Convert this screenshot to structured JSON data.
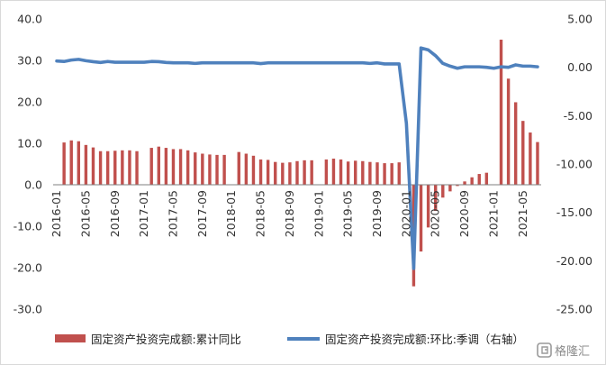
{
  "chart_data": {
    "type": "bar+line",
    "title": "",
    "xlabel": "",
    "ylabel": "",
    "x": [
      "2016-01",
      "2016-02",
      "2016-03",
      "2016-04",
      "2016-05",
      "2016-06",
      "2016-07",
      "2016-08",
      "2016-09",
      "2016-10",
      "2016-11",
      "2016-12",
      "2017-01",
      "2017-02",
      "2017-03",
      "2017-04",
      "2017-05",
      "2017-06",
      "2017-07",
      "2017-08",
      "2017-09",
      "2017-10",
      "2017-11",
      "2017-12",
      "2018-01",
      "2018-02",
      "2018-03",
      "2018-04",
      "2018-05",
      "2018-06",
      "2018-07",
      "2018-08",
      "2018-09",
      "2018-10",
      "2018-11",
      "2018-12",
      "2019-01",
      "2019-02",
      "2019-03",
      "2019-04",
      "2019-05",
      "2019-06",
      "2019-07",
      "2019-08",
      "2019-09",
      "2019-10",
      "2019-11",
      "2019-12",
      "2020-01",
      "2020-02",
      "2020-03",
      "2020-04",
      "2020-05",
      "2020-06",
      "2020-07",
      "2020-08",
      "2020-09",
      "2020-10",
      "2020-11",
      "2020-12",
      "2021-01",
      "2021-02",
      "2021-03",
      "2021-04",
      "2021-05",
      "2021-06",
      "2021-07"
    ],
    "x_tick_labels": [
      "2016-01",
      "2016-05",
      "2016-09",
      "2017-01",
      "2017-05",
      "2017-09",
      "2018-01",
      "2018-05",
      "2018-09",
      "2019-01",
      "2019-05",
      "2019-09",
      "2020-01",
      "2020-05",
      "2020-09",
      "2021-01",
      "2021-05"
    ],
    "y_left": {
      "ylim": [
        -30,
        40
      ],
      "ticks": [
        "40.0",
        "30.0",
        "20.0",
        "10.0",
        "0.0",
        "-10.0",
        "-20.0",
        "-30.0"
      ]
    },
    "y_right": {
      "ylim": [
        -25,
        5
      ],
      "ticks": [
        "5.00",
        "0.00",
        "-5.00",
        "-10.00",
        "-15.00",
        "-20.00",
        "-25.00"
      ]
    },
    "series": [
      {
        "name": "固定资产投资完成额:累计同比",
        "type": "bar",
        "axis": "left",
        "color": "#C0504D",
        "values": [
          null,
          10.2,
          10.7,
          10.5,
          9.6,
          9.0,
          8.1,
          8.1,
          8.2,
          8.3,
          8.3,
          8.1,
          null,
          8.9,
          9.2,
          8.9,
          8.6,
          8.6,
          8.3,
          7.8,
          7.5,
          7.3,
          7.2,
          7.2,
          null,
          7.9,
          7.5,
          7.0,
          6.1,
          6.0,
          5.5,
          5.3,
          5.4,
          5.7,
          5.9,
          5.9,
          null,
          6.1,
          6.3,
          6.1,
          5.6,
          5.8,
          5.7,
          5.5,
          5.4,
          5.2,
          5.2,
          5.4,
          null,
          -24.5,
          -16.1,
          -10.3,
          -6.3,
          -3.1,
          -1.6,
          -0.3,
          0.8,
          1.8,
          2.6,
          2.9,
          null,
          35.0,
          25.6,
          19.9,
          15.4,
          12.6,
          10.3
        ]
      },
      {
        "name": "固定资产投资完成额:环比:季调（右轴）",
        "type": "line",
        "axis": "right",
        "color": "#4F81BD",
        "values": [
          0.65,
          0.6,
          0.75,
          0.82,
          0.68,
          0.58,
          0.5,
          0.6,
          0.52,
          0.52,
          0.52,
          0.52,
          0.52,
          0.6,
          0.58,
          0.5,
          0.46,
          0.46,
          0.46,
          0.4,
          0.46,
          0.46,
          0.46,
          0.46,
          0.46,
          0.46,
          0.46,
          0.46,
          0.38,
          0.46,
          0.46,
          0.46,
          0.46,
          0.46,
          0.46,
          0.46,
          0.46,
          0.46,
          0.46,
          0.46,
          0.46,
          0.46,
          0.46,
          0.4,
          0.46,
          0.35,
          0.35,
          0.35,
          -5.8,
          -20.8,
          2.0,
          1.8,
          1.2,
          0.4,
          0.12,
          -0.1,
          0.05,
          0.05,
          0.05,
          0.0,
          -0.1,
          0.05,
          0.0,
          0.25,
          0.12,
          0.12,
          0.05
        ]
      }
    ],
    "legend_position": "bottom",
    "grid": false
  },
  "watermark": "格隆汇"
}
